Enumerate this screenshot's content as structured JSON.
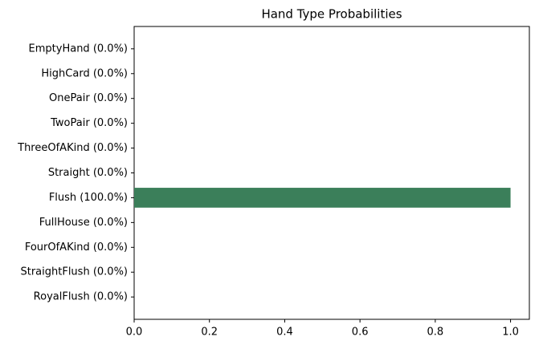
{
  "chart_data": {
    "type": "barh",
    "title": "Hand Type Probabilities",
    "categories": [
      "EmptyHand (0.0%)",
      "HighCard (0.0%)",
      "OnePair (0.0%)",
      "TwoPair (0.0%)",
      "ThreeOfAKind (0.0%)",
      "Straight (0.0%)",
      "Flush (100.0%)",
      "FullHouse (0.0%)",
      "FourOfAKind (0.0%)",
      "StraightFlush (0.0%)",
      "RoyalFlush (0.0%)"
    ],
    "values": [
      0,
      0,
      0,
      0,
      0,
      0,
      1.0,
      0,
      0,
      0,
      0
    ],
    "color": "#3b7f5a",
    "xlim": [
      0,
      1.05
    ],
    "xticks": [
      {
        "value": 0,
        "label": "0.0"
      },
      0.2,
      0.4,
      0.6,
      0.8,
      {
        "value": 1.0,
        "label": "1.0"
      }
    ],
    "grid": false
  }
}
